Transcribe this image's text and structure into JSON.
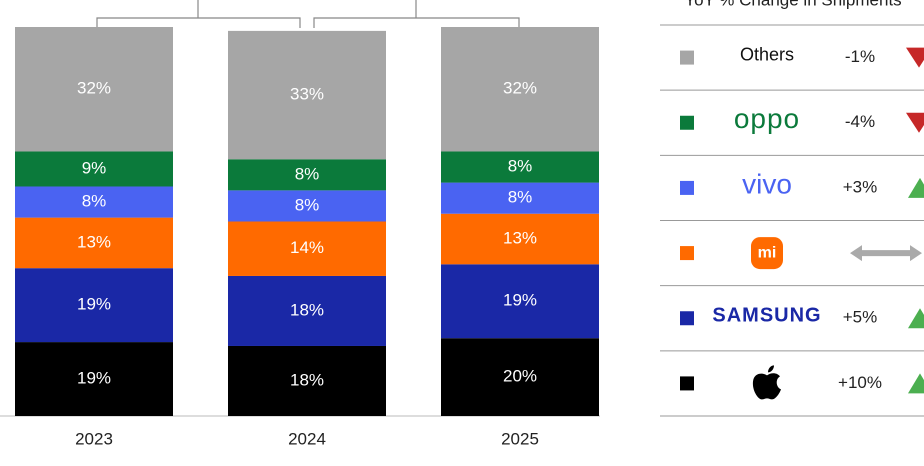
{
  "chart_data": {
    "type": "stacked-bar",
    "categories": [
      "2023",
      "2024",
      "2025"
    ],
    "ylim": [
      0,
      100
    ],
    "series": [
      {
        "name": null,
        "color": "#000000",
        "values": [
          19,
          18,
          20
        ],
        "value_labels": [
          "19%",
          "18%",
          "20%"
        ]
      },
      {
        "name": "SAMSUNG",
        "color": "#1a28a6",
        "values": [
          19,
          18,
          19
        ],
        "value_labels": [
          "19%",
          "18%",
          "19%"
        ]
      },
      {
        "name": "mi",
        "color": "#ff6a00",
        "values": [
          13,
          14,
          13
        ],
        "value_labels": [
          "13%",
          "14%",
          "13%"
        ]
      },
      {
        "name": "vivo",
        "color": "#4a63f2",
        "values": [
          8,
          8,
          8
        ],
        "value_labels": [
          "8%",
          "8%",
          "8%"
        ]
      },
      {
        "name": "oppo",
        "color": "#0b7a3b",
        "values": [
          9,
          8,
          8
        ],
        "value_labels": [
          "9%",
          "8%",
          "8%"
        ]
      },
      {
        "name": "Others",
        "color": "#a6a6a6",
        "values": [
          32,
          33,
          32
        ],
        "value_labels": [
          "32%",
          "33%",
          "32%"
        ]
      }
    ],
    "yoy_change": {
      "title": "YoY % Change in Shipments",
      "values": [
        10,
        5,
        null,
        3,
        -4,
        -1
      ],
      "value_labels": [
        "+10%",
        "+5%",
        null,
        "+3%",
        "-4%",
        "-1%"
      ]
    }
  }
}
